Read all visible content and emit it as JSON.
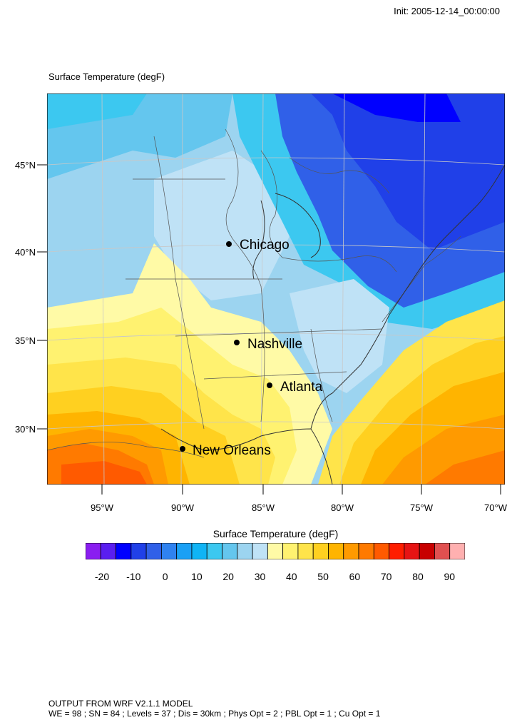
{
  "header": {
    "init_text": "Init: 2005-12-14_00:00:00"
  },
  "map": {
    "title": "Surface Temperature   (degF)",
    "latitude_labels": [
      "45°N",
      "40°N",
      "35°N",
      "30°N"
    ],
    "longitude_labels": [
      "95°W",
      "90°W",
      "85°W",
      "80°W",
      "75°W",
      "70°W"
    ],
    "cities": [
      {
        "name": "Chicago"
      },
      {
        "name": "Nashville"
      },
      {
        "name": "Atlanta"
      },
      {
        "name": "New Orleans"
      }
    ]
  },
  "colorbar": {
    "title": "Surface Temperature  (degF)",
    "labels": [
      "-20",
      "-10",
      "0",
      "10",
      "20",
      "30",
      "40",
      "50",
      "60",
      "70",
      "80",
      "90"
    ],
    "colors": [
      "#8a1ef0",
      "#5a1ef0",
      "#0000ff",
      "#2040e8",
      "#3060e8",
      "#2f82f0",
      "#1aa0f5",
      "#10b4f5",
      "#3cc8f0",
      "#64c6ee",
      "#9cd4f0",
      "#bfe2f6",
      "#fffaa6",
      "#fff270",
      "#ffe44a",
      "#ffd020",
      "#ffb400",
      "#ff9a00",
      "#ff7a00",
      "#ff5a00",
      "#ff1e00",
      "#e61414",
      "#c80000",
      "#e05050",
      "#ffb0b0"
    ]
  },
  "footer": {
    "line1": "OUTPUT FROM WRF V2.1.1 MODEL",
    "line2": "WE = 98 ; SN = 84 ; Levels = 37 ; Dis = 30km ; Phys Opt = 2 ; PBL Opt = 1 ; Cu Opt = 1"
  }
}
